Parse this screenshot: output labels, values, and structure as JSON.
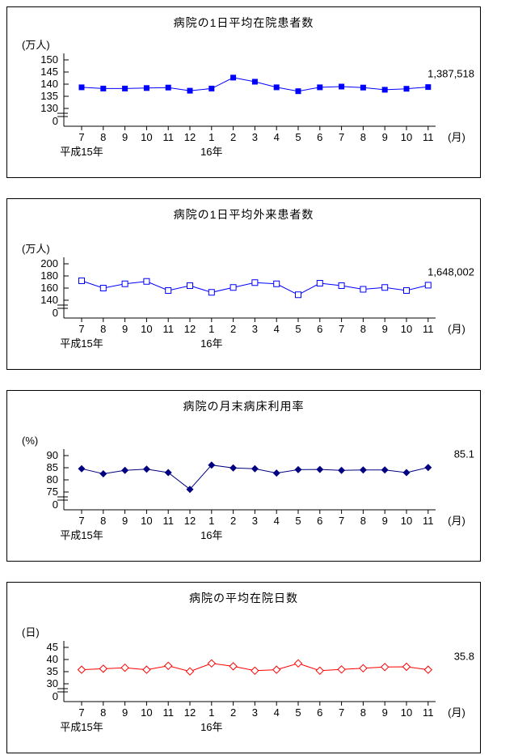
{
  "page": {
    "background_color": "#ffffff",
    "text_color": "#000000"
  },
  "chart_data": [
    {
      "type": "line",
      "title": "病院の1日平均在院患者数",
      "ylabel": "(万人)",
      "xlabel": "(月)",
      "x": [
        "7",
        "8",
        "9",
        "10",
        "11",
        "12",
        "1",
        "2",
        "3",
        "4",
        "5",
        "6",
        "7",
        "8",
        "9",
        "10",
        "11"
      ],
      "era_labels": [
        {
          "text": "平成15年",
          "index": 0
        },
        {
          "text": "16年",
          "index": 6
        }
      ],
      "values": [
        138.7,
        138.2,
        138.2,
        138.4,
        138.6,
        137.3,
        138.2,
        142.7,
        141.0,
        138.7,
        137.1,
        138.7,
        139.0,
        138.6,
        137.7,
        138.1,
        138.8
      ],
      "y_ticks": [
        150,
        145,
        140,
        135,
        130
      ],
      "y_base_label": "0",
      "y_axis_break": true,
      "annotation": "1,387,518",
      "color": "#0000ff",
      "marker": "filled-square",
      "grid": false,
      "legend": "none"
    },
    {
      "type": "line",
      "title": "病院の1日平均外来患者数",
      "ylabel": "(万人)",
      "xlabel": "(月)",
      "x": [
        "7",
        "8",
        "9",
        "10",
        "11",
        "12",
        "1",
        "2",
        "3",
        "4",
        "5",
        "6",
        "7",
        "8",
        "9",
        "10",
        "11"
      ],
      "era_labels": [
        {
          "text": "平成15年",
          "index": 0
        },
        {
          "text": "16年",
          "index": 6
        }
      ],
      "values": [
        172,
        160,
        167,
        171,
        156,
        164,
        153,
        161,
        169,
        167,
        149,
        168,
        164,
        158,
        161,
        156,
        164.8
      ],
      "y_ticks": [
        200,
        180,
        160,
        140
      ],
      "y_base_label": "0",
      "y_axis_break": true,
      "annotation": "1,648,002",
      "color": "#0000ff",
      "marker": "open-square",
      "grid": false,
      "legend": "none"
    },
    {
      "type": "line",
      "title": "病院の月末病床利用率",
      "ylabel": "(%)",
      "xlabel": "(月)",
      "x": [
        "7",
        "8",
        "9",
        "10",
        "11",
        "12",
        "1",
        "2",
        "3",
        "4",
        "5",
        "6",
        "7",
        "8",
        "9",
        "10",
        "11"
      ],
      "era_labels": [
        {
          "text": "平成15年",
          "index": 0
        },
        {
          "text": "16年",
          "index": 6
        }
      ],
      "values": [
        84.6,
        82.5,
        83.9,
        84.4,
        83.0,
        76.1,
        86.1,
        84.9,
        84.6,
        82.8,
        84.2,
        84.3,
        83.9,
        84.1,
        84.1,
        83.0,
        85.1
      ],
      "y_ticks": [
        90,
        85,
        80,
        75
      ],
      "y_base_label": "0",
      "y_axis_break": true,
      "annotation": "85.1",
      "color": "#000080",
      "marker": "filled-diamond",
      "grid": false,
      "legend": "none"
    },
    {
      "type": "line",
      "title": "病院の平均在院日数",
      "ylabel": "(日)",
      "xlabel": "(月)",
      "x": [
        "7",
        "8",
        "9",
        "10",
        "11",
        "12",
        "1",
        "2",
        "3",
        "4",
        "5",
        "6",
        "7",
        "8",
        "9",
        "10",
        "11"
      ],
      "era_labels": [
        {
          "text": "平成15年",
          "index": 0
        },
        {
          "text": "16年",
          "index": 6
        }
      ],
      "values": [
        35.8,
        36.2,
        36.6,
        35.8,
        37.4,
        35.1,
        38.4,
        37.2,
        35.4,
        35.8,
        38.4,
        35.4,
        35.9,
        36.4,
        36.9,
        37.0,
        35.8
      ],
      "y_ticks": [
        45,
        40,
        35,
        30
      ],
      "y_base_label": "0",
      "y_axis_break": true,
      "annotation": "35.8",
      "color": "#ff0000",
      "marker": "open-diamond",
      "grid": false,
      "legend": "none"
    }
  ]
}
